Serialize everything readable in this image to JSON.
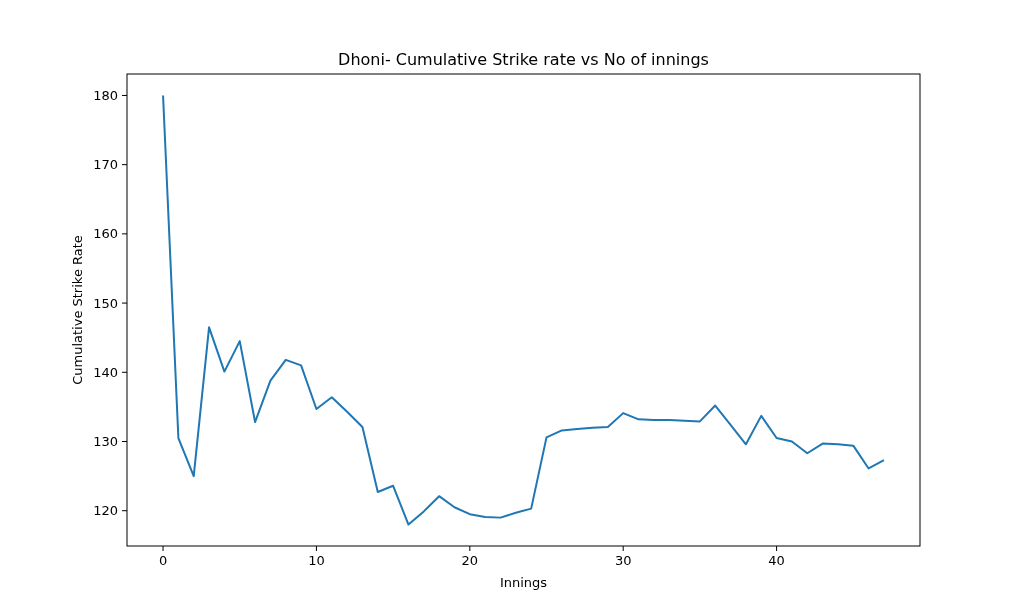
{
  "chart_data": {
    "type": "line",
    "title": "Dhoni- Cumulative Strike rate vs No of innings",
    "xlabel": "Innings",
    "ylabel": "Cumulative Strike Rate",
    "x": [
      0,
      1,
      2,
      3,
      4,
      5,
      6,
      7,
      8,
      9,
      10,
      11,
      12,
      13,
      14,
      15,
      16,
      17,
      18,
      19,
      20,
      21,
      22,
      23,
      24,
      25,
      26,
      27,
      28,
      29,
      30,
      31,
      32,
      33,
      34,
      35,
      36,
      37,
      38,
      39,
      40,
      41,
      42,
      43,
      44,
      45,
      46,
      47
    ],
    "series": [
      {
        "color": "#1f77b4",
        "values": [
          180,
          130.5,
          125,
          146.5,
          140.1,
          144.5,
          132.8,
          138.8,
          141.8,
          141,
          134.7,
          136.4,
          134.3,
          132.1,
          122.7,
          123.6,
          118,
          119.9,
          122.1,
          120.5,
          119.5,
          119.1,
          119,
          119.7,
          120.3,
          130.6,
          131.6,
          131.8,
          132,
          132.1,
          134.1,
          133.2,
          133.1,
          133.1,
          133,
          132.9,
          135.2,
          132.4,
          129.6,
          133.7,
          130.5,
          130,
          128.3,
          129.7,
          129.6,
          129.4,
          126.1,
          127.3
        ]
      }
    ],
    "xlim": [
      -2.35,
      49.35
    ],
    "xticks": [
      0,
      10,
      20,
      30,
      40
    ],
    "ylim": [
      114.9,
      183.1
    ],
    "yticks": [
      120,
      130,
      140,
      150,
      160,
      170,
      180
    ]
  }
}
